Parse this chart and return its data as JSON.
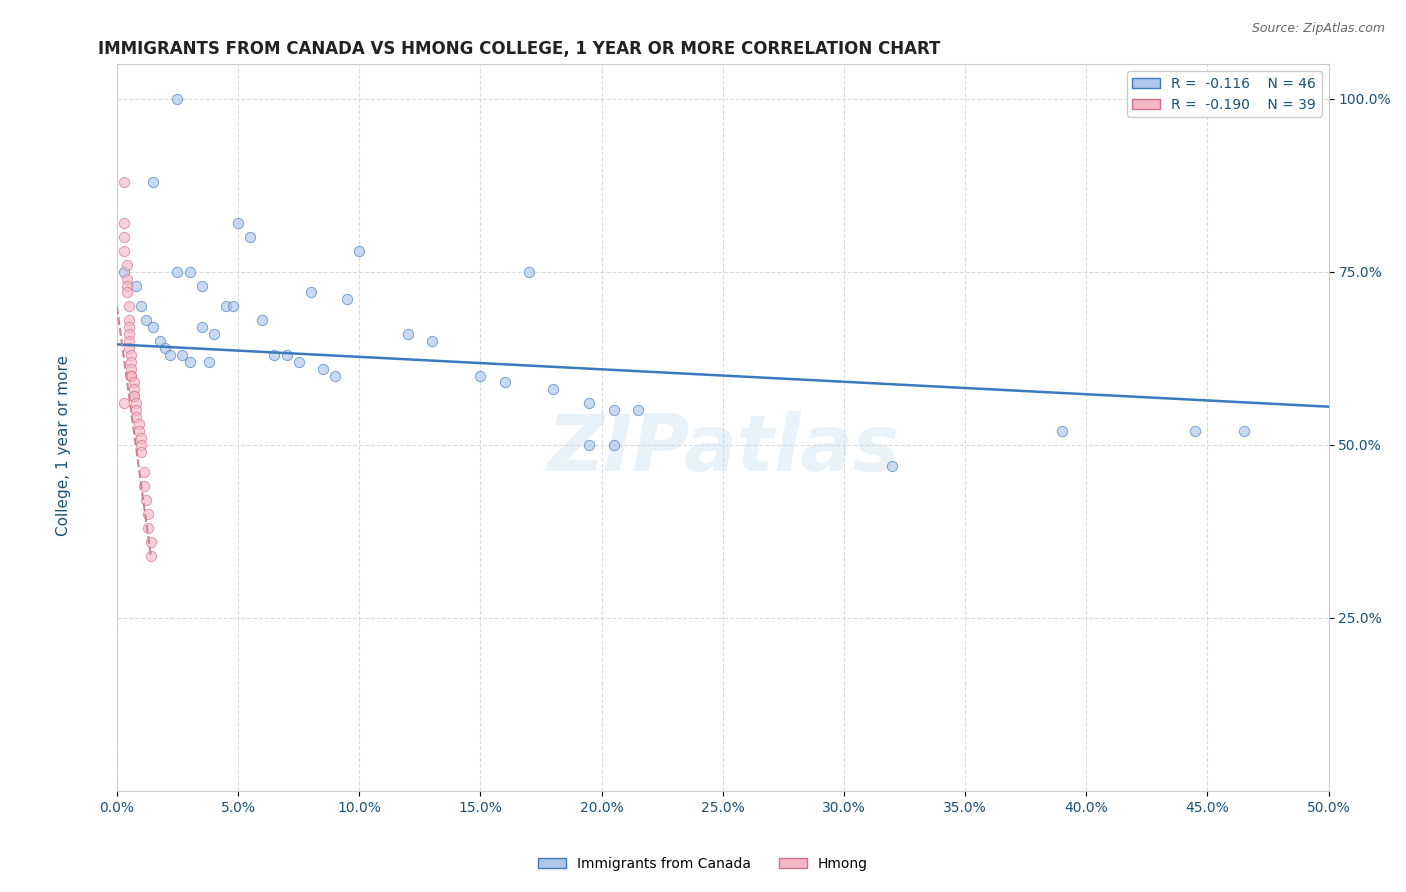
{
  "title": "IMMIGRANTS FROM CANADA VS HMONG COLLEGE, 1 YEAR OR MORE CORRELATION CHART",
  "source_text": "Source: ZipAtlas.com",
  "ylabel": "College, 1 year or more",
  "x_tick_labels": [
    "0.0%",
    "5.0%",
    "10.0%",
    "15.0%",
    "20.0%",
    "25.0%",
    "30.0%",
    "35.0%",
    "40.0%",
    "45.0%",
    "50.0%"
  ],
  "y_tick_labels": [
    "25.0%",
    "50.0%",
    "75.0%",
    "100.0%"
  ],
  "xlim": [
    0.0,
    0.5
  ],
  "ylim": [
    0.0,
    1.05
  ],
  "legend_entries": [
    {
      "label": "R =  -0.116    N = 46",
      "color": "#aec6e8"
    },
    {
      "label": "R =  -0.190    N = 39",
      "color": "#f4b8c8"
    }
  ],
  "bottom_legend": [
    "Immigrants from Canada",
    "Hmong"
  ],
  "bottom_legend_colors": [
    "#aec6e8",
    "#f4b8c8"
  ],
  "watermark": "ZIPatlas",
  "blue_dots": [
    [
      0.025,
      1.0
    ],
    [
      0.015,
      0.88
    ],
    [
      0.05,
      0.82
    ],
    [
      0.055,
      0.8
    ],
    [
      0.1,
      0.78
    ],
    [
      0.17,
      0.75
    ],
    [
      0.025,
      0.75
    ],
    [
      0.03,
      0.75
    ],
    [
      0.035,
      0.73
    ],
    [
      0.08,
      0.72
    ],
    [
      0.095,
      0.71
    ],
    [
      0.045,
      0.7
    ],
    [
      0.048,
      0.7
    ],
    [
      0.06,
      0.68
    ],
    [
      0.035,
      0.67
    ],
    [
      0.04,
      0.66
    ],
    [
      0.12,
      0.66
    ],
    [
      0.13,
      0.65
    ],
    [
      0.003,
      0.75
    ],
    [
      0.008,
      0.73
    ],
    [
      0.01,
      0.7
    ],
    [
      0.012,
      0.68
    ],
    [
      0.015,
      0.67
    ],
    [
      0.018,
      0.65
    ],
    [
      0.02,
      0.64
    ],
    [
      0.022,
      0.63
    ],
    [
      0.027,
      0.63
    ],
    [
      0.03,
      0.62
    ],
    [
      0.038,
      0.62
    ],
    [
      0.065,
      0.63
    ],
    [
      0.07,
      0.63
    ],
    [
      0.075,
      0.62
    ],
    [
      0.085,
      0.61
    ],
    [
      0.09,
      0.6
    ],
    [
      0.15,
      0.6
    ],
    [
      0.16,
      0.59
    ],
    [
      0.18,
      0.58
    ],
    [
      0.195,
      0.56
    ],
    [
      0.205,
      0.55
    ],
    [
      0.215,
      0.55
    ],
    [
      0.195,
      0.5
    ],
    [
      0.205,
      0.5
    ],
    [
      0.32,
      0.47
    ],
    [
      0.39,
      0.52
    ],
    [
      0.445,
      0.52
    ],
    [
      0.465,
      0.52
    ]
  ],
  "pink_dots": [
    [
      0.003,
      0.88
    ],
    [
      0.003,
      0.82
    ],
    [
      0.003,
      0.8
    ],
    [
      0.003,
      0.78
    ],
    [
      0.004,
      0.76
    ],
    [
      0.004,
      0.74
    ],
    [
      0.004,
      0.73
    ],
    [
      0.004,
      0.72
    ],
    [
      0.005,
      0.7
    ],
    [
      0.005,
      0.68
    ],
    [
      0.005,
      0.67
    ],
    [
      0.005,
      0.66
    ],
    [
      0.005,
      0.65
    ],
    [
      0.005,
      0.64
    ],
    [
      0.006,
      0.63
    ],
    [
      0.006,
      0.62
    ],
    [
      0.006,
      0.61
    ],
    [
      0.006,
      0.6
    ],
    [
      0.006,
      0.6
    ],
    [
      0.007,
      0.59
    ],
    [
      0.007,
      0.58
    ],
    [
      0.007,
      0.57
    ],
    [
      0.007,
      0.57
    ],
    [
      0.008,
      0.56
    ],
    [
      0.008,
      0.55
    ],
    [
      0.008,
      0.54
    ],
    [
      0.009,
      0.53
    ],
    [
      0.009,
      0.52
    ],
    [
      0.01,
      0.51
    ],
    [
      0.01,
      0.5
    ],
    [
      0.01,
      0.49
    ],
    [
      0.011,
      0.46
    ],
    [
      0.011,
      0.44
    ],
    [
      0.012,
      0.42
    ],
    [
      0.013,
      0.4
    ],
    [
      0.013,
      0.38
    ],
    [
      0.014,
      0.36
    ],
    [
      0.014,
      0.34
    ],
    [
      0.003,
      0.56
    ]
  ],
  "blue_line_x": [
    0.0,
    0.5
  ],
  "blue_line_y": [
    0.645,
    0.555
  ],
  "pink_line_x": [
    0.0,
    0.014
  ],
  "pink_line_y": [
    0.7,
    0.34
  ],
  "grid_color": "#d8d8d8",
  "dot_alpha": 0.65,
  "dot_size": 55,
  "title_color": "#222222",
  "axis_label_color": "#1a5276",
  "tick_color": "#1a5276",
  "blue_line_color": "#3a7abf",
  "pink_line_color": "#d08090",
  "bg_color": "#ffffff"
}
